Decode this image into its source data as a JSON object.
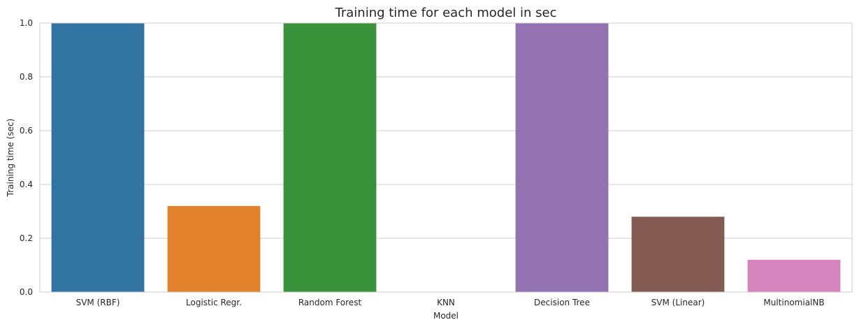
{
  "chart_data": {
    "type": "bar",
    "title": "Training time for each model in sec",
    "xlabel": "Model",
    "ylabel": "Training time (sec)",
    "ylim": [
      0,
      1.0
    ],
    "yticks": [
      "0.0",
      "0.2",
      "0.4",
      "0.6",
      "0.8",
      "1.0"
    ],
    "grid": true,
    "categories": [
      "SVM (RBF)",
      "Logistic Regr.",
      "Random Forest",
      "KNN",
      "Decision Tree",
      "SVM (Linear)",
      "MultinomialNB"
    ],
    "values": [
      1.0,
      0.32,
      1.0,
      0.0,
      1.0,
      0.28,
      0.12
    ],
    "colors": [
      "#3274a1",
      "#e1812c",
      "#3a923a",
      "#c03d3e",
      "#9372b2",
      "#845b53",
      "#d684bd"
    ]
  }
}
